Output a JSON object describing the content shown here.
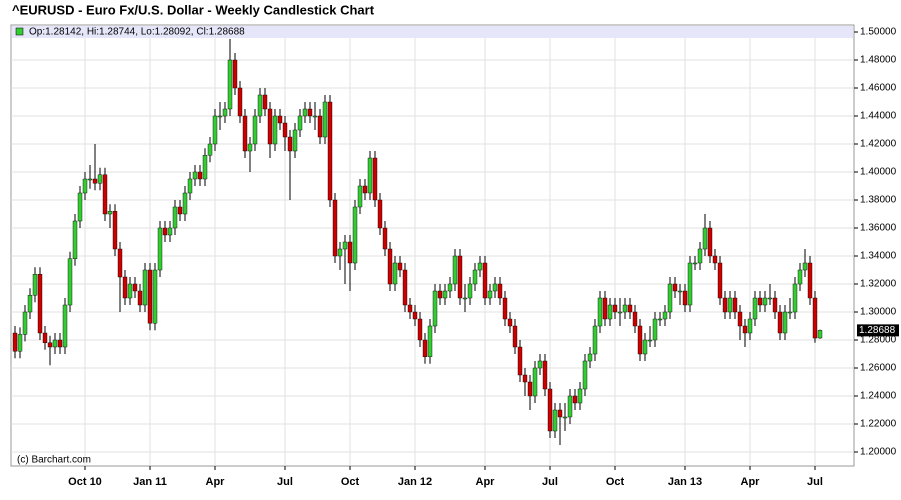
{
  "chart_data": {
    "type": "candlestick",
    "title": "^EURUSD - Euro Fx/U.S. Dollar - Weekly Candlestick Chart",
    "ohlc_label": "Op:1.28142, Hi:1.28744, Lo:1.28092, Cl:1.28688",
    "watermark": "(c) Barchart.com",
    "up_color": "#33cc33",
    "down_color": "#cc0000",
    "grid": true,
    "ylim": [
      1.19,
      1.505
    ],
    "yticks": [
      {
        "value": 1.2,
        "label": "1.20000"
      },
      {
        "value": 1.22,
        "label": "1.22000"
      },
      {
        "value": 1.24,
        "label": "1.24000"
      },
      {
        "value": 1.26,
        "label": "1.26000"
      },
      {
        "value": 1.28,
        "label": "1.28000"
      },
      {
        "value": 1.3,
        "label": "1.30000"
      },
      {
        "value": 1.32,
        "label": "1.32000"
      },
      {
        "value": 1.34,
        "label": "1.34000"
      },
      {
        "value": 1.36,
        "label": "1.36000"
      },
      {
        "value": 1.38,
        "label": "1.38000"
      },
      {
        "value": 1.4,
        "label": "1.40000"
      },
      {
        "value": 1.42,
        "label": "1.42000"
      },
      {
        "value": 1.44,
        "label": "1.44000"
      },
      {
        "value": 1.46,
        "label": "1.46000"
      },
      {
        "value": 1.48,
        "label": "1.48000"
      },
      {
        "value": 1.5,
        "label": "1.50000"
      }
    ],
    "xticks": [
      {
        "value": 14,
        "label": "Oct 10"
      },
      {
        "value": 27,
        "label": "Jan 11"
      },
      {
        "value": 40,
        "label": "Apr"
      },
      {
        "value": 54,
        "label": "Jul"
      },
      {
        "value": 67,
        "label": "Oct"
      },
      {
        "value": 80,
        "label": "Jan 12"
      },
      {
        "value": 94,
        "label": "Apr"
      },
      {
        "value": 107,
        "label": "Jul"
      },
      {
        "value": 120,
        "label": "Oct"
      },
      {
        "value": 134,
        "label": "Jan 13"
      },
      {
        "value": 147,
        "label": "Apr"
      },
      {
        "value": 160,
        "label": "Jul"
      }
    ],
    "open": [
      1.285,
      1.272,
      1.284,
      1.3,
      1.312,
      1.327,
      1.285,
      1.278,
      1.275,
      1.28,
      1.275,
      1.305,
      1.338,
      1.365,
      1.385,
      1.395,
      1.395,
      1.392,
      1.398,
      1.37,
      1.372,
      1.345,
      1.325,
      1.31,
      1.32,
      1.315,
      1.305,
      1.33,
      1.292,
      1.33,
      1.36,
      1.355,
      1.36,
      1.375,
      1.37,
      1.385,
      1.395,
      1.4,
      1.395,
      1.412,
      1.42,
      1.44,
      1.44,
      1.445,
      1.48,
      1.46,
      1.44,
      1.415,
      1.42,
      1.44,
      1.455,
      1.445,
      1.42,
      1.44,
      1.435,
      1.425,
      1.415,
      1.43,
      1.44,
      1.445,
      1.44,
      1.44,
      1.425,
      1.45,
      1.38,
      1.34,
      1.345,
      1.35,
      1.335,
      1.375,
      1.39,
      1.385,
      1.41,
      1.38,
      1.36,
      1.345,
      1.32,
      1.335,
      1.33,
      1.305,
      1.3,
      1.295,
      1.28,
      1.268,
      1.29,
      1.315,
      1.31,
      1.315,
      1.32,
      1.34,
      1.31,
      1.31,
      1.32,
      1.33,
      1.335,
      1.31,
      1.315,
      1.32,
      1.31,
      1.295,
      1.29,
      1.275,
      1.255,
      1.25,
      1.24,
      1.26,
      1.265,
      1.245,
      1.215,
      1.23,
      1.225,
      1.225,
      1.24,
      1.235,
      1.245,
      1.265,
      1.27,
      1.29,
      1.31,
      1.295,
      1.305,
      1.3,
      1.3,
      1.305,
      1.3,
      1.29,
      1.27,
      1.28,
      1.28,
      1.295,
      1.295,
      1.3,
      1.32,
      1.315,
      1.315,
      1.305,
      1.335,
      1.335,
      1.345,
      1.36,
      1.34,
      1.335,
      1.31,
      1.3,
      1.31,
      1.3,
      1.29,
      1.285,
      1.295,
      1.31,
      1.305,
      1.31,
      1.31,
      1.3,
      1.285,
      1.3,
      1.3,
      1.32,
      1.33,
      1.335,
      1.31,
      1.28142
    ],
    "high": [
      1.29,
      1.289,
      1.305,
      1.317,
      1.332,
      1.332,
      1.29,
      1.283,
      1.285,
      1.285,
      1.31,
      1.343,
      1.37,
      1.39,
      1.4,
      1.405,
      1.42,
      1.403,
      1.403,
      1.377,
      1.377,
      1.35,
      1.33,
      1.325,
      1.325,
      1.32,
      1.335,
      1.335,
      1.335,
      1.365,
      1.365,
      1.365,
      1.38,
      1.38,
      1.39,
      1.4,
      1.405,
      1.405,
      1.417,
      1.425,
      1.445,
      1.45,
      1.45,
      1.495,
      1.485,
      1.465,
      1.445,
      1.425,
      1.445,
      1.46,
      1.46,
      1.45,
      1.445,
      1.445,
      1.44,
      1.43,
      1.435,
      1.445,
      1.45,
      1.45,
      1.45,
      1.445,
      1.455,
      1.455,
      1.385,
      1.35,
      1.355,
      1.355,
      1.38,
      1.395,
      1.395,
      1.415,
      1.415,
      1.385,
      1.365,
      1.35,
      1.34,
      1.34,
      1.335,
      1.31,
      1.305,
      1.3,
      1.285,
      1.295,
      1.32,
      1.32,
      1.32,
      1.325,
      1.345,
      1.345,
      1.32,
      1.325,
      1.335,
      1.34,
      1.34,
      1.32,
      1.325,
      1.325,
      1.315,
      1.3,
      1.295,
      1.28,
      1.26,
      1.255,
      1.265,
      1.27,
      1.27,
      1.25,
      1.235,
      1.235,
      1.235,
      1.245,
      1.245,
      1.25,
      1.27,
      1.275,
      1.295,
      1.315,
      1.315,
      1.31,
      1.31,
      1.31,
      1.31,
      1.31,
      1.305,
      1.295,
      1.285,
      1.29,
      1.3,
      1.3,
      1.305,
      1.325,
      1.325,
      1.32,
      1.32,
      1.34,
      1.34,
      1.35,
      1.37,
      1.365,
      1.345,
      1.34,
      1.315,
      1.315,
      1.315,
      1.305,
      1.295,
      1.3,
      1.315,
      1.315,
      1.315,
      1.32,
      1.315,
      1.305,
      1.305,
      1.31,
      1.325,
      1.335,
      1.345,
      1.34,
      1.315,
      1.28744
    ],
    "low": [
      1.267,
      1.267,
      1.279,
      1.295,
      1.307,
      1.28,
      1.273,
      1.262,
      1.27,
      1.27,
      1.27,
      1.3,
      1.333,
      1.36,
      1.38,
      1.388,
      1.387,
      1.387,
      1.365,
      1.36,
      1.34,
      1.3,
      1.305,
      1.305,
      1.31,
      1.3,
      1.3,
      1.287,
      1.287,
      1.325,
      1.35,
      1.35,
      1.355,
      1.365,
      1.365,
      1.38,
      1.39,
      1.39,
      1.39,
      1.407,
      1.415,
      1.43,
      1.435,
      1.44,
      1.455,
      1.435,
      1.41,
      1.4,
      1.415,
      1.435,
      1.44,
      1.41,
      1.415,
      1.43,
      1.415,
      1.38,
      1.41,
      1.425,
      1.435,
      1.435,
      1.43,
      1.42,
      1.42,
      1.375,
      1.335,
      1.33,
      1.32,
      1.315,
      1.33,
      1.37,
      1.38,
      1.38,
      1.375,
      1.355,
      1.34,
      1.315,
      1.315,
      1.325,
      1.3,
      1.295,
      1.29,
      1.275,
      1.263,
      1.263,
      1.285,
      1.305,
      1.305,
      1.31,
      1.315,
      1.305,
      1.3,
      1.305,
      1.315,
      1.325,
      1.305,
      1.305,
      1.31,
      1.305,
      1.29,
      1.285,
      1.27,
      1.25,
      1.24,
      1.23,
      1.235,
      1.255,
      1.24,
      1.21,
      1.21,
      1.205,
      1.215,
      1.22,
      1.23,
      1.23,
      1.24,
      1.26,
      1.265,
      1.285,
      1.29,
      1.29,
      1.295,
      1.29,
      1.295,
      1.295,
      1.285,
      1.265,
      1.265,
      1.275,
      1.275,
      1.29,
      1.29,
      1.295,
      1.31,
      1.305,
      1.3,
      1.3,
      1.33,
      1.33,
      1.34,
      1.335,
      1.33,
      1.305,
      1.295,
      1.295,
      1.295,
      1.28,
      1.275,
      1.28,
      1.29,
      1.3,
      1.3,
      1.305,
      1.295,
      1.28,
      1.28,
      1.295,
      1.295,
      1.315,
      1.325,
      1.305,
      1.278,
      1.28092
    ],
    "close": [
      1.272,
      1.284,
      1.3,
      1.312,
      1.327,
      1.285,
      1.278,
      1.275,
      1.28,
      1.275,
      1.305,
      1.338,
      1.365,
      1.385,
      1.395,
      1.395,
      1.392,
      1.398,
      1.37,
      1.372,
      1.345,
      1.325,
      1.31,
      1.32,
      1.315,
      1.305,
      1.33,
      1.292,
      1.33,
      1.36,
      1.355,
      1.36,
      1.375,
      1.37,
      1.385,
      1.395,
      1.4,
      1.395,
      1.412,
      1.42,
      1.44,
      1.44,
      1.445,
      1.48,
      1.46,
      1.44,
      1.415,
      1.42,
      1.44,
      1.455,
      1.445,
      1.42,
      1.44,
      1.435,
      1.425,
      1.415,
      1.43,
      1.44,
      1.445,
      1.44,
      1.44,
      1.425,
      1.45,
      1.38,
      1.34,
      1.345,
      1.35,
      1.335,
      1.375,
      1.39,
      1.385,
      1.41,
      1.38,
      1.36,
      1.345,
      1.32,
      1.335,
      1.33,
      1.305,
      1.3,
      1.295,
      1.28,
      1.268,
      1.29,
      1.315,
      1.31,
      1.315,
      1.32,
      1.34,
      1.31,
      1.31,
      1.32,
      1.33,
      1.335,
      1.31,
      1.315,
      1.32,
      1.31,
      1.295,
      1.29,
      1.275,
      1.255,
      1.25,
      1.24,
      1.26,
      1.265,
      1.245,
      1.215,
      1.23,
      1.225,
      1.225,
      1.24,
      1.235,
      1.245,
      1.265,
      1.27,
      1.29,
      1.31,
      1.295,
      1.305,
      1.3,
      1.3,
      1.305,
      1.3,
      1.29,
      1.27,
      1.28,
      1.28,
      1.295,
      1.295,
      1.3,
      1.32,
      1.315,
      1.315,
      1.305,
      1.335,
      1.335,
      1.345,
      1.36,
      1.34,
      1.335,
      1.31,
      1.3,
      1.31,
      1.3,
      1.29,
      1.285,
      1.295,
      1.31,
      1.305,
      1.31,
      1.31,
      1.3,
      1.285,
      1.3,
      1.3,
      1.32,
      1.33,
      1.335,
      1.31,
      1.2814,
      1.28688
    ]
  }
}
